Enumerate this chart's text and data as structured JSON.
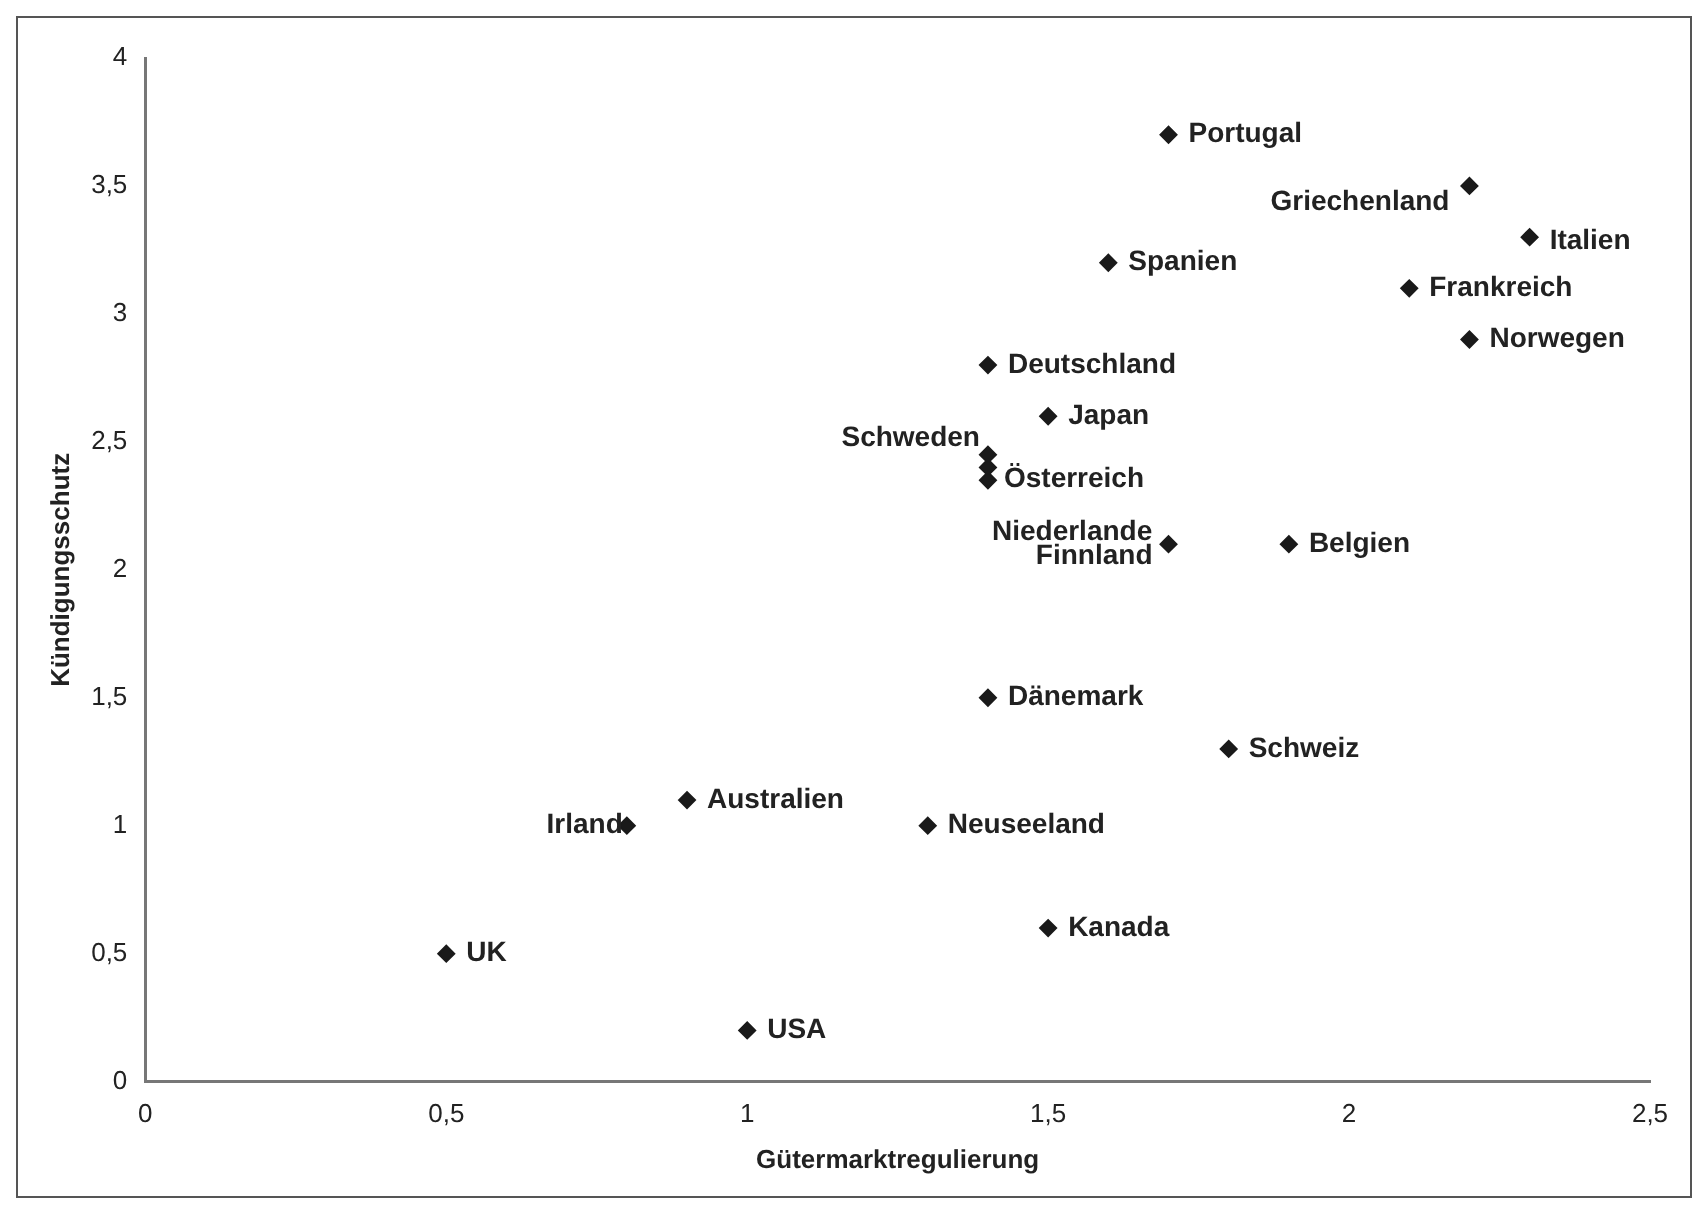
{
  "chart_data": {
    "type": "scatter",
    "xlabel": "Gütermarktregulierung",
    "ylabel": "Kündigungsschutz",
    "xlim": [
      0,
      2.5
    ],
    "ylim": [
      0,
      4
    ],
    "xticks": [
      0,
      {
        "value": 0.5,
        "label": "0,5"
      },
      1,
      {
        "value": 1.5,
        "label": "1,5"
      },
      2,
      {
        "value": 2.5,
        "label": "2,5"
      }
    ],
    "yticks": [
      0,
      {
        "value": 0.5,
        "label": "0,5"
      },
      1,
      {
        "value": 1.5,
        "label": "1,5"
      },
      2,
      {
        "value": 2.5,
        "label": "2,5"
      },
      3,
      {
        "value": 3.5,
        "label": "3,5"
      },
      4
    ],
    "grid": false,
    "legend": false,
    "marker": "diamond",
    "series": [
      {
        "color": "#1a1a1a",
        "x": [
          1.7,
          2.2,
          2.3,
          1.6,
          2.1,
          2.2,
          1.4,
          1.5,
          1.4,
          1.4,
          1.4,
          1.7,
          1.9,
          1.4,
          1.8,
          0.9,
          0.8,
          1.3,
          1.5,
          0.5,
          1.0
        ],
        "values": [
          3.7,
          3.5,
          3.3,
          3.2,
          3.1,
          2.9,
          2.8,
          2.6,
          2.45,
          2.4,
          2.35,
          2.1,
          2.1,
          1.5,
          1.3,
          1.1,
          1.0,
          1.0,
          0.6,
          0.5,
          0.2
        ]
      }
    ],
    "annotations": [
      {
        "text": "Portugal",
        "x": 1.7,
        "y": 3.7
      },
      {
        "text": "Griechenland",
        "x": 2.2,
        "y": 3.5
      },
      {
        "text": "Italien",
        "x": 2.3,
        "y": 3.3
      },
      {
        "text": "Spanien",
        "x": 1.6,
        "y": 3.2
      },
      {
        "text": "Frankreich",
        "x": 2.1,
        "y": 3.1
      },
      {
        "text": "Norwegen",
        "x": 2.2,
        "y": 2.9
      },
      {
        "text": "Deutschland",
        "x": 1.4,
        "y": 2.8
      },
      {
        "text": "Japan",
        "x": 1.5,
        "y": 2.6
      },
      {
        "text": "Schweden",
        "x": 1.4,
        "y": 2.45
      },
      {
        "text": "Österreich",
        "x": 1.4,
        "y": 2.4
      },
      {
        "text": "Niederlande",
        "x": 1.4,
        "y": 2.35
      },
      {
        "text": "Finnland",
        "x": 1.7,
        "y": 2.1
      },
      {
        "text": "Belgien",
        "x": 1.9,
        "y": 2.1
      },
      {
        "text": "Dänemark",
        "x": 1.4,
        "y": 1.5
      },
      {
        "text": "Schweiz",
        "x": 1.8,
        "y": 1.3
      },
      {
        "text": "Australien",
        "x": 0.9,
        "y": 1.1
      },
      {
        "text": "Irland",
        "x": 0.8,
        "y": 1.0
      },
      {
        "text": "Neuseeland",
        "x": 1.3,
        "y": 1.0
      },
      {
        "text": "Kanada",
        "x": 1.5,
        "y": 0.6
      },
      {
        "text": "UK",
        "x": 0.5,
        "y": 0.5
      },
      {
        "text": "USA",
        "x": 1.0,
        "y": 0.2
      }
    ]
  }
}
